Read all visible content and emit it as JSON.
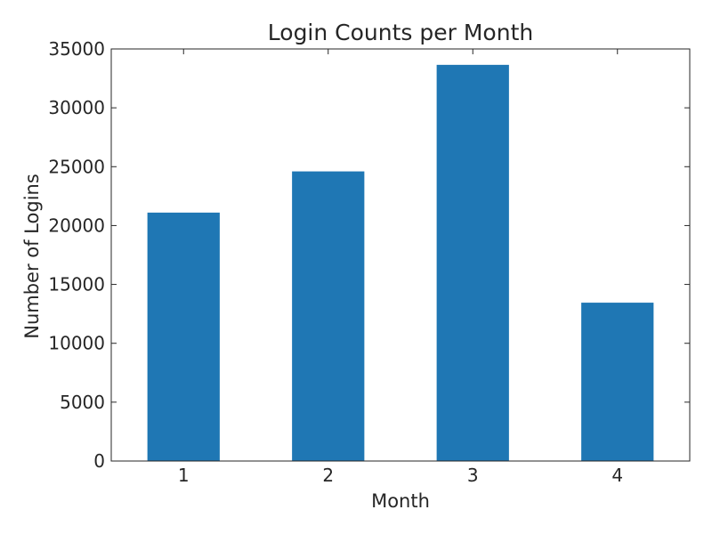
{
  "chart_data": {
    "type": "bar",
    "title": "Login Counts per Month",
    "xlabel": "Month",
    "ylabel": "Number of Logins",
    "categories": [
      "1",
      "2",
      "3",
      "4"
    ],
    "values": [
      21100,
      24600,
      33650,
      13450
    ],
    "ylim": [
      0,
      35000
    ],
    "yticks": [
      0,
      5000,
      10000,
      15000,
      20000,
      25000,
      30000,
      35000
    ],
    "ytick_labels": [
      "0",
      "5000",
      "10000",
      "15000",
      "20000",
      "25000",
      "30000",
      "35000"
    ],
    "grid": false,
    "colors": {
      "bar": "#1f77b4",
      "axis": "#262626"
    }
  }
}
